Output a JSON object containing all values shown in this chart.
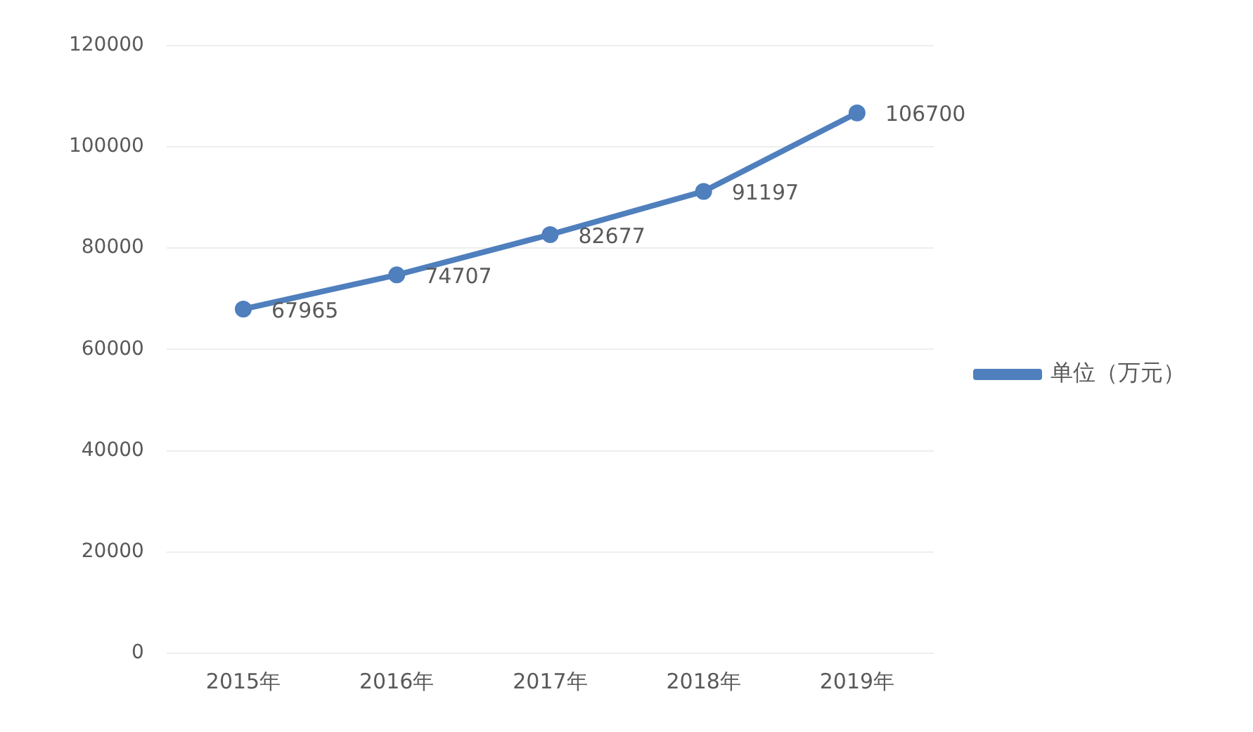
{
  "chart_data": {
    "type": "line",
    "categories": [
      "2015年",
      "2016年",
      "2017年",
      "2018年",
      "2019年"
    ],
    "series": [
      {
        "name": "单位（万元）",
        "color": "#4f7fbd",
        "values": [
          67965,
          74707,
          82677,
          91197,
          106700
        ]
      }
    ],
    "ylim": [
      0,
      120000
    ],
    "yticks": [
      0,
      20000,
      40000,
      60000,
      80000,
      100000,
      120000
    ],
    "grid": "y",
    "legend": "right",
    "marker": "circle",
    "line_style": "solid",
    "data_labels": true
  }
}
